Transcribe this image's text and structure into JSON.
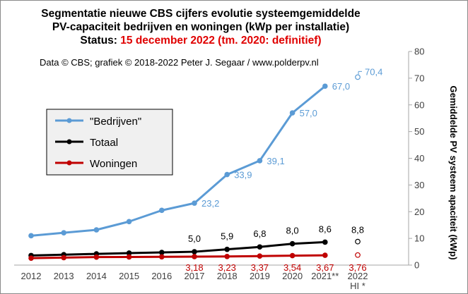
{
  "title": {
    "line1": "Segmentatie nieuwe CBS cijfers evolutie systeemgemiddelde",
    "line2": "PV-capaciteit bedrijven en woningen (kWp per installatie)",
    "line3_prefix": "Status:",
    "line3_highlight": "15 december 2022 (tm. 2020: definitief)"
  },
  "credit": "Data © CBS;  grafiek © 2018-2022  Peter J. Segaar / www.polderpv.nl",
  "colors": {
    "bedrijven": "#5b9bd5",
    "totaal": "#000000",
    "woningen": "#c00000",
    "gridline": "#d9d9d9"
  },
  "chart_data": {
    "type": "line",
    "categories": [
      "2012",
      "2013",
      "2014",
      "2015",
      "2016",
      "2017",
      "2018",
      "2019",
      "2020",
      "2021**",
      "2022 HI *"
    ],
    "x_tick_labels": [
      [
        "2012"
      ],
      [
        "2013"
      ],
      [
        "2014"
      ],
      [
        "2015"
      ],
      [
        "2016"
      ],
      [
        "2017"
      ],
      [
        "2018"
      ],
      [
        "2019"
      ],
      [
        "2020"
      ],
      [
        "2021**"
      ],
      [
        "2022",
        "HI *"
      ]
    ],
    "ylabel": "Gemiddelde PV systeem apaciteit (kWp)",
    "ylim": [
      0,
      80
    ],
    "yticks": [
      0,
      10,
      20,
      30,
      40,
      50,
      60,
      70,
      80
    ],
    "y_axis_side": "right",
    "grid": false,
    "legend_position": "left",
    "series": [
      {
        "name": "\"Bedrijven\"",
        "color_key": "bedrijven",
        "values": [
          11.0,
          12.1,
          13.2,
          16.3,
          20.5,
          23.2,
          33.9,
          39.1,
          57.0,
          67.0,
          null
        ],
        "labels": [
          null,
          null,
          null,
          null,
          null,
          "23,2",
          "33,9",
          "39,1",
          "57,0",
          "67,0",
          null
        ],
        "extra_point": {
          "category_index": 10,
          "value": 70.4,
          "label": "70,4"
        }
      },
      {
        "name": "Totaal",
        "color_key": "totaal",
        "values": [
          3.6,
          3.9,
          4.2,
          4.5,
          4.75,
          5.0,
          5.9,
          6.8,
          8.0,
          8.6,
          null
        ],
        "labels": [
          null,
          null,
          null,
          null,
          null,
          "5,0",
          "5,9",
          "6,8",
          "8,0",
          "8,6",
          null
        ],
        "extra_point": {
          "category_index": 10,
          "value": 8.8,
          "label": "8,8"
        }
      },
      {
        "name": "Woningen",
        "color_key": "woningen",
        "values": [
          2.6,
          2.8,
          3.0,
          3.05,
          3.1,
          3.18,
          3.23,
          3.37,
          3.54,
          3.67,
          null
        ],
        "labels": [
          null,
          null,
          null,
          null,
          null,
          "3,18",
          "3,23",
          "3,37",
          "3,54",
          "3,67",
          null
        ],
        "extra_point": {
          "category_index": 10,
          "value": 3.76,
          "label": "3,76"
        }
      }
    ]
  }
}
